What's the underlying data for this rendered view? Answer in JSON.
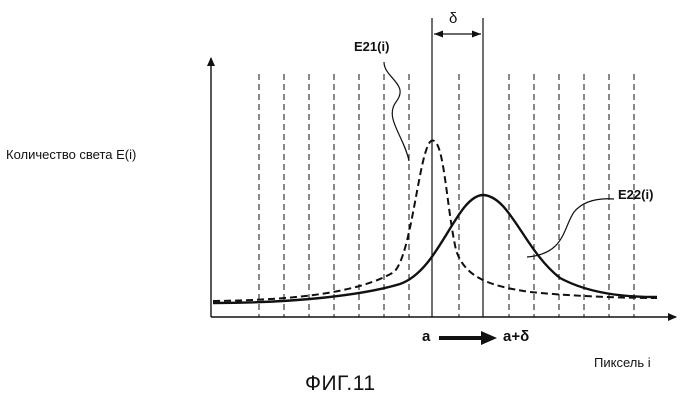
{
  "figure": {
    "y_axis_label": "Количество света E(i)",
    "x_axis_label": "Пиксель i",
    "caption": "ФИГ.11",
    "delta_label": "δ",
    "start_label": "a",
    "shifted_label": "a+δ"
  },
  "curves": [
    {
      "id": "E21",
      "label": "E21(i)",
      "style": "dashed",
      "color": "#111111"
    },
    {
      "id": "E22",
      "label": "E22(i)",
      "style": "solid",
      "color": "#111111"
    }
  ],
  "pixel_grid": {
    "count": 16,
    "style": "dashed"
  }
}
